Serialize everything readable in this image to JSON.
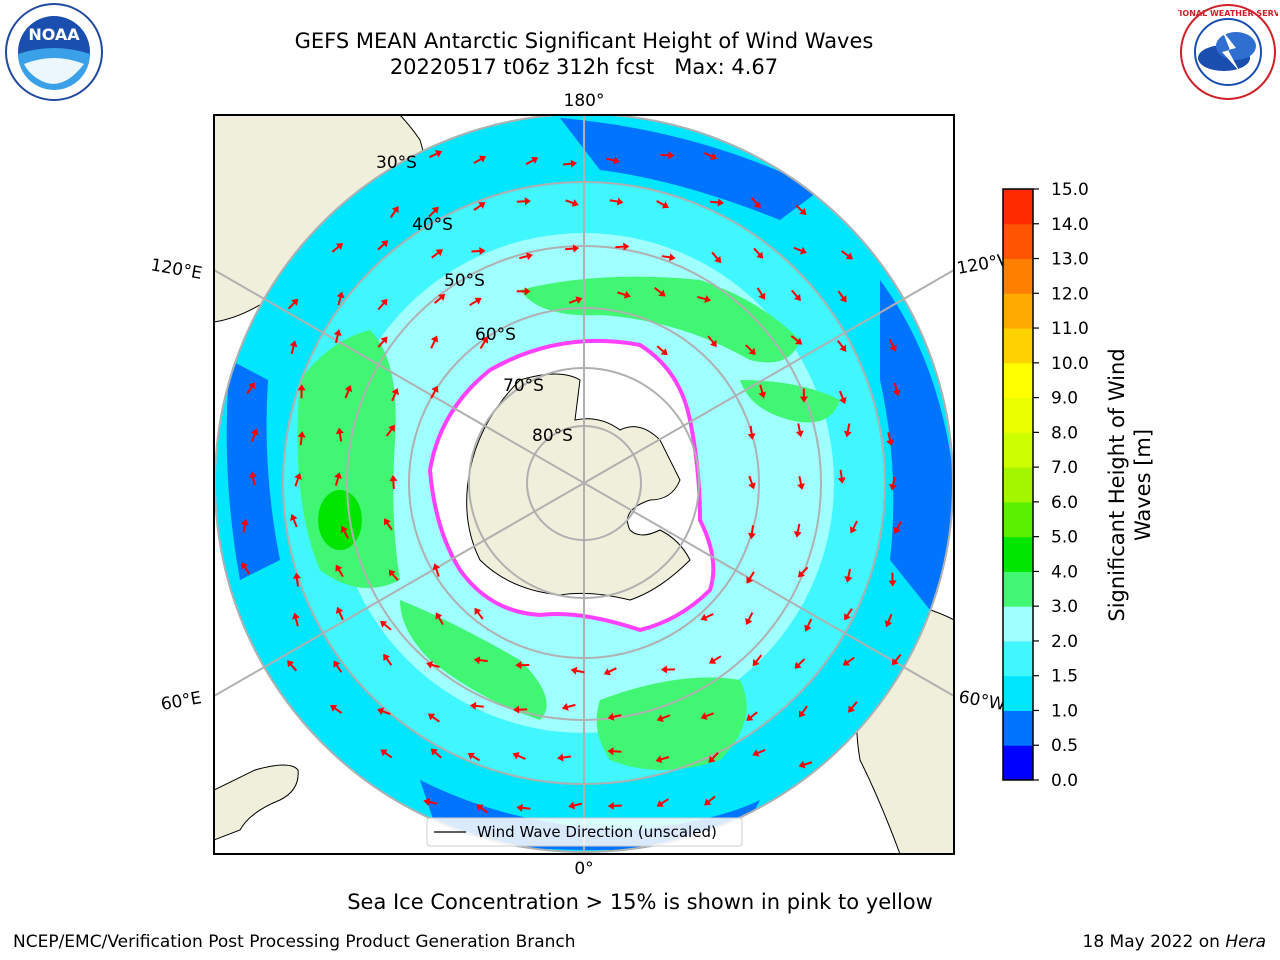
{
  "title": "GEFS MEAN Antarctic Significant Height of Wind Waves",
  "subtitle": "20220517 t06z 312h fcst   Max: 4.67",
  "logos": {
    "left": "NOAA",
    "right": "NATIONAL WEATHER SERVICE"
  },
  "map": {
    "lon_labels": {
      "top": "180°",
      "bottom": "0°",
      "upper_left": "120°E",
      "upper_right": "120°W",
      "lower_left": "60°E",
      "lower_right": "60°W"
    },
    "lat_labels": [
      "30°S",
      "40°S",
      "50°S",
      "60°S",
      "70°S",
      "80°S"
    ],
    "legend": "Wind Wave Direction (unscaled)",
    "colors": {
      "land": "#efefdb",
      "ice": "#ffffff",
      "ice_edge": "#ff40ff",
      "arrow": "#ff0000"
    }
  },
  "colorbar": {
    "label_line1": "Significant Height of Wind",
    "label_line2": "Waves [m]",
    "ticks": [
      "0.0",
      "0.5",
      "1.0",
      "1.5",
      "2.0",
      "3.0",
      "4.0",
      "5.0",
      "6.0",
      "7.0",
      "8.0",
      "9.0",
      "10.0",
      "11.0",
      "12.0",
      "13.0",
      "14.0",
      "15.0"
    ],
    "colors": [
      "#0000ff",
      "#0073ff",
      "#00e6ff",
      "#40f6ff",
      "#a0ffff",
      "#40f673",
      "#00e600",
      "#5af000",
      "#a4f500",
      "#ccff00",
      "#ebff00",
      "#ffff00",
      "#ffd200",
      "#ffaa00",
      "#ff8000",
      "#ff5500",
      "#ff2b00"
    ]
  },
  "caption": "Sea Ice Concentration > 15% is shown in pink to yellow",
  "footer": {
    "left": "NCEP/EMC/Verification Post Processing Product Generation Branch",
    "right_text": "18 May 2022 on ",
    "right_italic": "Hera"
  }
}
